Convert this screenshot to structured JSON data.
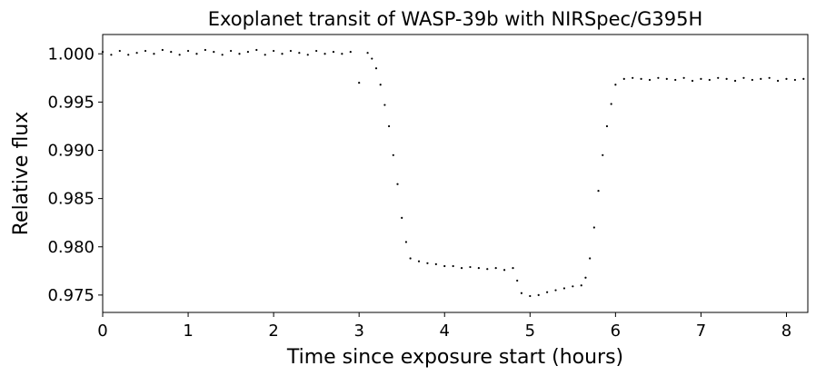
{
  "chart_data": {
    "type": "scatter",
    "title": "Exoplanet transit of WASP-39b with NIRSpec/G395H",
    "xlabel": "Time since exposure start (hours)",
    "ylabel": "Relative flux",
    "xlim": [
      0,
      8.25
    ],
    "ylim": [
      0.9732,
      1.002
    ],
    "xticks": [
      0,
      1,
      2,
      3,
      4,
      5,
      6,
      7,
      8
    ],
    "xtick_labels": [
      "0",
      "1",
      "2",
      "3",
      "4",
      "5",
      "6",
      "7",
      "8"
    ],
    "yticks": [
      0.975,
      0.98,
      0.985,
      0.99,
      0.995,
      1.0
    ],
    "ytick_labels": [
      "0.975",
      "0.980",
      "0.985",
      "0.990",
      "0.995",
      "1.000"
    ],
    "grid": false,
    "marker_color": "#000000",
    "series": [
      {
        "x": [
          0.0,
          0.1,
          0.2,
          0.3,
          0.4,
          0.5,
          0.6,
          0.7,
          0.8,
          0.9,
          1.0,
          1.1,
          1.2,
          1.3,
          1.4,
          1.5,
          1.6,
          1.7,
          1.8,
          1.9,
          2.0,
          2.1,
          2.2,
          2.3,
          2.4,
          2.5,
          2.6,
          2.7,
          2.8,
          2.9,
          3.0,
          3.1,
          3.15,
          3.2,
          3.25,
          3.3,
          3.35,
          3.4,
          3.45,
          3.5,
          3.55,
          3.6,
          3.7,
          3.8,
          3.9,
          4.0,
          4.1,
          4.2,
          4.3,
          4.4,
          4.5,
          4.6,
          4.7,
          4.8,
          4.85,
          4.9,
          5.0,
          5.1,
          5.2,
          5.3,
          5.4,
          5.5,
          5.6,
          5.65,
          5.7,
          5.75,
          5.8,
          5.85,
          5.9,
          5.95,
          6.0,
          6.1,
          6.2,
          6.3,
          6.4,
          6.5,
          6.6,
          6.7,
          6.8,
          6.9,
          7.0,
          7.1,
          7.2,
          7.3,
          7.4,
          7.5,
          7.6,
          7.7,
          7.8,
          7.9,
          8.0,
          8.1,
          8.2
        ],
        "y": [
          1.0002,
          0.9999,
          1.0003,
          0.9999,
          1.0001,
          1.0003,
          1.0,
          1.0004,
          1.0002,
          0.9999,
          1.0003,
          1.0,
          1.0004,
          1.0002,
          0.9999,
          1.0003,
          1.0,
          1.0002,
          1.0004,
          0.9999,
          1.0003,
          1.0,
          1.0003,
          1.0001,
          0.9999,
          1.0003,
          1.0,
          1.0002,
          1.0,
          1.0002,
          0.997,
          1.0001,
          0.9995,
          0.9985,
          0.9968,
          0.9947,
          0.9925,
          0.9895,
          0.9865,
          0.983,
          0.9805,
          0.9788,
          0.9785,
          0.9783,
          0.9782,
          0.978,
          0.978,
          0.9778,
          0.9779,
          0.9778,
          0.9777,
          0.9778,
          0.9776,
          0.9778,
          0.9765,
          0.9752,
          0.9749,
          0.975,
          0.9753,
          0.9755,
          0.9757,
          0.9759,
          0.976,
          0.9768,
          0.9788,
          0.982,
          0.9858,
          0.9895,
          0.9925,
          0.9948,
          0.9968,
          0.9974,
          0.9975,
          0.9974,
          0.9973,
          0.9975,
          0.9974,
          0.9973,
          0.9975,
          0.9972,
          0.9974,
          0.9973,
          0.9975,
          0.9974,
          0.9972,
          0.9975,
          0.9973,
          0.9974,
          0.9975,
          0.9972,
          0.9974,
          0.9973,
          0.9974
        ]
      }
    ]
  }
}
